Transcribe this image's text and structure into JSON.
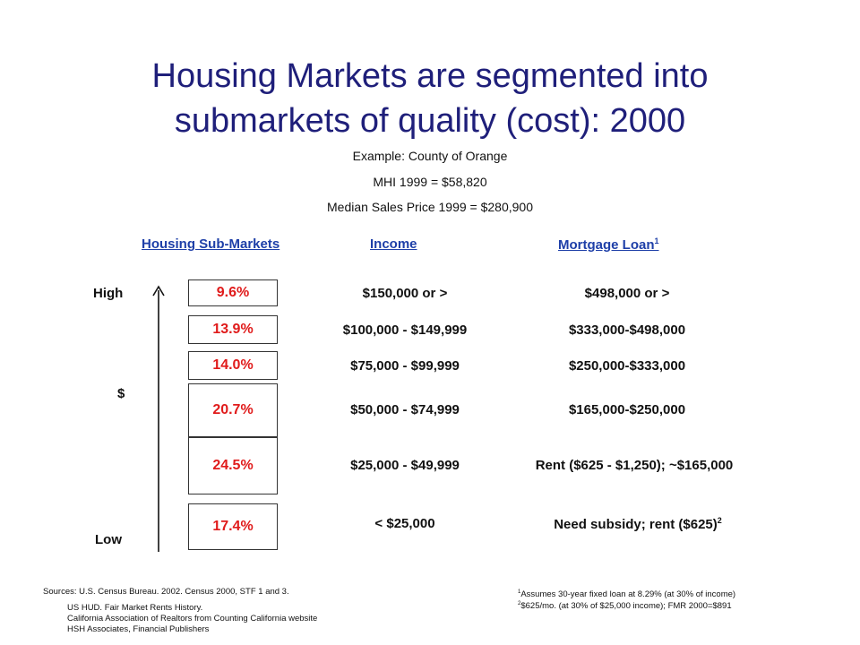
{
  "title": {
    "line1": "Housing Markets are segmented into",
    "line2": "submarkets of quality (cost): 2000"
  },
  "subtitle": {
    "example": "Example: County of Orange",
    "mhi": "MHI 1999 = $58,820",
    "median_price": "Median Sales Price 1999 = $280,900"
  },
  "headers": {
    "submarkets": "Housing Sub-Markets",
    "income": "Income",
    "mortgage": "Mortgage Loan",
    "mortgage_note": "1"
  },
  "axis": {
    "high": "High",
    "mid": "$",
    "low": "Low"
  },
  "rows": [
    {
      "share": "9.6%",
      "income": "$150,000 or >",
      "loan": "$498,000 or >",
      "loan_note": ""
    },
    {
      "share": "13.9%",
      "income": "$100,000 - $149,999",
      "loan": "$333,000-$498,000",
      "loan_note": ""
    },
    {
      "share": "14.0%",
      "income": "$75,000 - $99,999",
      "loan": "$250,000-$333,000",
      "loan_note": ""
    },
    {
      "share": "20.7%",
      "income": "$50,000 - $74,999",
      "loan": "$165,000-$250,000",
      "loan_note": ""
    },
    {
      "share": "24.5%",
      "income": "$25,000 - $49,999",
      "loan": "Rent ($625 - $1,250); ~$165,000",
      "loan_note": ""
    },
    {
      "share": "17.4%",
      "income": "< $25,000",
      "loan": "Need subsidy; rent ($625)",
      "loan_note": "2"
    }
  ],
  "sources": {
    "line1": "Sources:  U.S. Census Bureau.  2002.  Census 2000, STF 1 and 3.",
    "line2": "US HUD.  Fair Market Rents History.",
    "line3": "California Association of Realtors from Counting California website",
    "line4": "HSH Associates, Financial Publishers"
  },
  "footnotes": {
    "n1_mark": "1",
    "n1": "Assumes 30-year fixed loan at 8.29% (at 30% of income)",
    "n2_mark": "2",
    "n2": "$625/mo. (at 30% of $25,000 income); FMR 2000=$891"
  },
  "colors": {
    "title": "#1f1f7a",
    "header": "#1e3fa8",
    "share": "#e01b1b"
  }
}
